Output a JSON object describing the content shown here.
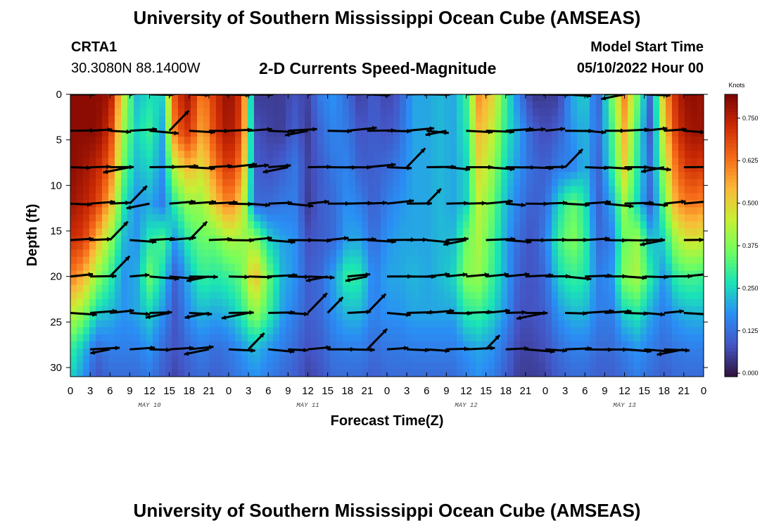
{
  "page": {
    "title": "University of Southern Mississippi Ocean Cube (AMSEAS)",
    "footer_title": "University of Southern Mississippi Ocean Cube (AMSEAS)",
    "station": "CRTA1",
    "coords": "30.3080N  88.1400W",
    "subtitle": "2-D Currents Speed-Magnitude",
    "model_start_label": "Model Start Time",
    "model_start_value": "05/10/2022 Hour 00"
  },
  "chart_data": {
    "type": "heatmap",
    "title": "2-D Currents Speed-Magnitude",
    "xlabel": "Forecast Time(Z)",
    "ylabel": "Depth (ft)",
    "x_range_hours": [
      0,
      96
    ],
    "ylim": [
      31,
      0
    ],
    "x_tick_labels": [
      "0",
      "3",
      "6",
      "9",
      "12",
      "15",
      "18",
      "21",
      "0",
      "3",
      "6",
      "9",
      "12",
      "15",
      "18",
      "21",
      "0",
      "3",
      "6",
      "9",
      "12",
      "15",
      "18",
      "21",
      "0",
      "3",
      "6",
      "9",
      "12",
      "15",
      "18",
      "21",
      "0"
    ],
    "day_labels": [
      {
        "label": "MAY 10",
        "hour": 12
      },
      {
        "label": "MAY 11",
        "hour": 36
      },
      {
        "label": "MAY 12",
        "hour": 60
      },
      {
        "label": "MAY 13",
        "hour": 84
      }
    ],
    "y_ticks": [
      0,
      5,
      10,
      15,
      20,
      25,
      30
    ],
    "colorbar": {
      "unit": "Knots",
      "min": -0.01,
      "max": 0.82,
      "ticks": [
        "0.000",
        "0.125",
        "0.250",
        "0.375",
        "0.500",
        "0.625",
        "0.750"
      ],
      "tick_values": [
        0,
        0.125,
        0.25,
        0.375,
        0.5,
        0.625,
        0.75
      ]
    },
    "palette": [
      "#30123b",
      "#4454c4",
      "#2a8ef5",
      "#1ae4b6",
      "#71fe5f",
      "#c7ef34",
      "#fbb938",
      "#f56918",
      "#cb2a04",
      "#7a0403"
    ],
    "vector_depths_ft": [
      0,
      4,
      8,
      12,
      16,
      20,
      24,
      28
    ],
    "vector_hours": [
      0,
      3,
      6,
      9,
      12,
      15,
      18,
      21,
      24,
      27,
      30,
      33,
      36,
      39,
      42,
      45,
      48,
      51,
      54,
      57,
      60,
      63,
      66,
      69,
      72,
      75,
      78,
      81,
      84,
      87,
      90,
      93,
      96
    ],
    "speed_field": {
      "hours": [
        0,
        2,
        4,
        6,
        8,
        10,
        12,
        14,
        16,
        18,
        20,
        22,
        24,
        26,
        28,
        30,
        32,
        34,
        36,
        38,
        40,
        42,
        44,
        46,
        48,
        50,
        52,
        54,
        56,
        58,
        60,
        62,
        64,
        66,
        68,
        70,
        72,
        74,
        76,
        78,
        80,
        82,
        84,
        86,
        88,
        90,
        92,
        94,
        96
      ],
      "depths": [
        0,
        4,
        8,
        12,
        16,
        20,
        24,
        28,
        31
      ],
      "values": [
        [
          0.8,
          0.8,
          0.8,
          0.78,
          0.45,
          0.22,
          0.26,
          0.25,
          0.7,
          0.78,
          0.6,
          0.72,
          0.8,
          0.7,
          0.05,
          0.05,
          0.05,
          0.08,
          0.06,
          0.15,
          0.18,
          0.12,
          0.05,
          0.1,
          0.06,
          0.1,
          0.2,
          0.2,
          0.22,
          0.2,
          0.3,
          0.6,
          0.5,
          0.3,
          0.15,
          0.04,
          0.05,
          0.05,
          0.2,
          0.25,
          0.1,
          0.35,
          0.6,
          0.35,
          0.1,
          0.55,
          0.75,
          0.8,
          0.78
        ],
        [
          0.8,
          0.8,
          0.8,
          0.72,
          0.4,
          0.25,
          0.3,
          0.2,
          0.65,
          0.72,
          0.55,
          0.7,
          0.78,
          0.68,
          0.08,
          0.06,
          0.05,
          0.1,
          0.05,
          0.12,
          0.16,
          0.14,
          0.08,
          0.1,
          0.08,
          0.12,
          0.2,
          0.2,
          0.22,
          0.2,
          0.28,
          0.55,
          0.45,
          0.28,
          0.2,
          0.1,
          0.07,
          0.1,
          0.18,
          0.22,
          0.12,
          0.3,
          0.55,
          0.3,
          0.08,
          0.5,
          0.72,
          0.78,
          0.78
        ],
        [
          0.8,
          0.78,
          0.74,
          0.65,
          0.35,
          0.22,
          0.25,
          0.18,
          0.45,
          0.55,
          0.48,
          0.62,
          0.72,
          0.6,
          0.1,
          0.08,
          0.1,
          0.14,
          0.06,
          0.1,
          0.14,
          0.16,
          0.1,
          0.1,
          0.12,
          0.15,
          0.2,
          0.2,
          0.22,
          0.2,
          0.25,
          0.5,
          0.4,
          0.25,
          0.18,
          0.12,
          0.1,
          0.15,
          0.15,
          0.22,
          0.1,
          0.28,
          0.5,
          0.28,
          0.12,
          0.42,
          0.65,
          0.72,
          0.7
        ],
        [
          0.78,
          0.75,
          0.7,
          0.55,
          0.28,
          0.18,
          0.2,
          0.15,
          0.3,
          0.4,
          0.4,
          0.52,
          0.62,
          0.5,
          0.12,
          0.12,
          0.14,
          0.15,
          0.05,
          0.1,
          0.12,
          0.18,
          0.15,
          0.1,
          0.15,
          0.18,
          0.2,
          0.2,
          0.22,
          0.2,
          0.25,
          0.45,
          0.35,
          0.22,
          0.15,
          0.1,
          0.12,
          0.25,
          0.35,
          0.28,
          0.1,
          0.2,
          0.4,
          0.25,
          0.1,
          0.35,
          0.58,
          0.62,
          0.6
        ],
        [
          0.72,
          0.7,
          0.55,
          0.4,
          0.22,
          0.18,
          0.28,
          0.32,
          0.18,
          0.3,
          0.35,
          0.35,
          0.42,
          0.4,
          0.4,
          0.25,
          0.2,
          0.18,
          0.08,
          0.1,
          0.12,
          0.2,
          0.2,
          0.12,
          0.18,
          0.2,
          0.2,
          0.2,
          0.22,
          0.22,
          0.35,
          0.42,
          0.32,
          0.2,
          0.12,
          0.08,
          0.15,
          0.3,
          0.38,
          0.3,
          0.12,
          0.15,
          0.35,
          0.4,
          0.22,
          0.25,
          0.42,
          0.48,
          0.45
        ],
        [
          0.62,
          0.55,
          0.4,
          0.3,
          0.18,
          0.2,
          0.35,
          0.25,
          0.1,
          0.22,
          0.3,
          0.28,
          0.3,
          0.35,
          0.55,
          0.35,
          0.22,
          0.18,
          0.1,
          0.12,
          0.2,
          0.3,
          0.28,
          0.15,
          0.2,
          0.2,
          0.22,
          0.2,
          0.22,
          0.25,
          0.38,
          0.4,
          0.3,
          0.2,
          0.1,
          0.08,
          0.12,
          0.25,
          0.3,
          0.28,
          0.15,
          0.18,
          0.38,
          0.42,
          0.28,
          0.18,
          0.3,
          0.32,
          0.3
        ],
        [
          0.45,
          0.38,
          0.25,
          0.22,
          0.18,
          0.2,
          0.25,
          0.18,
          0.08,
          0.18,
          0.22,
          0.2,
          0.22,
          0.28,
          0.4,
          0.3,
          0.2,
          0.15,
          0.1,
          0.12,
          0.18,
          0.22,
          0.22,
          0.15,
          0.18,
          0.18,
          0.2,
          0.2,
          0.2,
          0.2,
          0.28,
          0.3,
          0.25,
          0.18,
          0.08,
          0.08,
          0.1,
          0.18,
          0.22,
          0.22,
          0.15,
          0.15,
          0.25,
          0.28,
          0.2,
          0.15,
          0.2,
          0.22,
          0.22
        ],
        [
          0.3,
          0.22,
          0.12,
          0.15,
          0.15,
          0.15,
          0.18,
          0.12,
          0.08,
          0.12,
          0.15,
          0.12,
          0.14,
          0.18,
          0.22,
          0.18,
          0.15,
          0.12,
          0.08,
          0.1,
          0.14,
          0.15,
          0.15,
          0.12,
          0.14,
          0.14,
          0.15,
          0.15,
          0.15,
          0.15,
          0.18,
          0.2,
          0.18,
          0.12,
          0.06,
          0.06,
          0.08,
          0.12,
          0.15,
          0.15,
          0.12,
          0.12,
          0.15,
          0.18,
          0.15,
          0.12,
          0.14,
          0.15,
          0.15
        ],
        [
          0.25,
          0.18,
          0.08,
          0.12,
          0.12,
          0.12,
          0.14,
          0.1,
          0.06,
          0.1,
          0.12,
          0.1,
          0.12,
          0.15,
          0.18,
          0.15,
          0.12,
          0.1,
          0.06,
          0.08,
          0.12,
          0.12,
          0.12,
          0.1,
          0.12,
          0.12,
          0.12,
          0.12,
          0.12,
          0.12,
          0.15,
          0.18,
          0.15,
          0.1,
          0.05,
          0.05,
          0.06,
          0.1,
          0.12,
          0.12,
          0.1,
          0.1,
          0.12,
          0.15,
          0.12,
          0.1,
          0.12,
          0.12,
          0.12
        ]
      ]
    }
  }
}
